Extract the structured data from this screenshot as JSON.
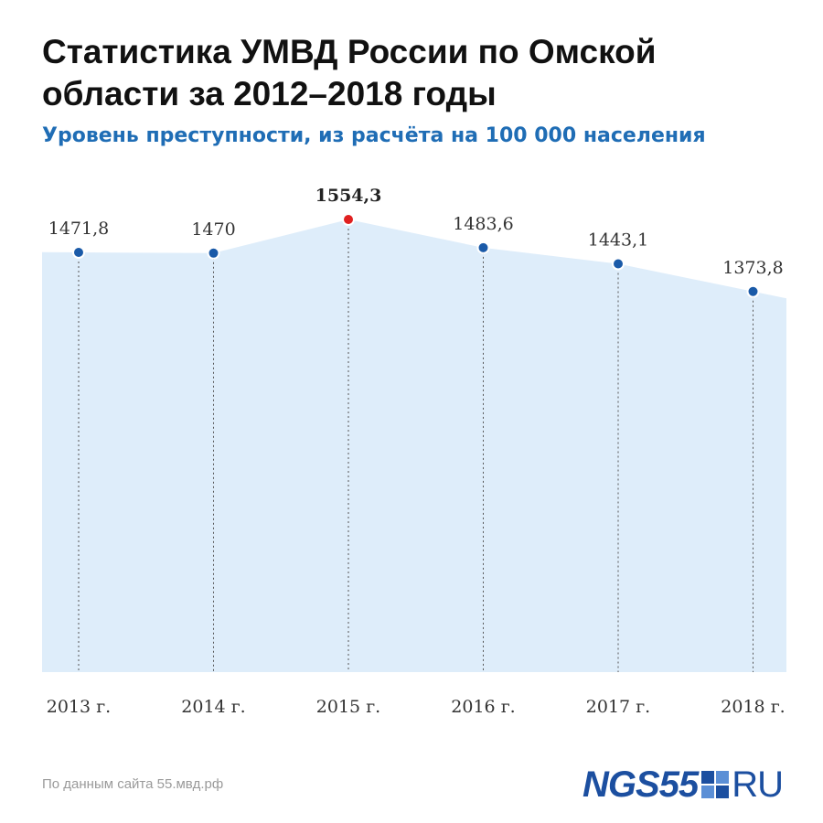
{
  "title": "Статистика УМВД России по Омской области за 2012–2018 годы",
  "subtitle": "Уровень преступности, из расчёта на 100 000 населения",
  "source": "По данным сайта 55.мвд.рф",
  "logo": {
    "main": "NGS55",
    "suffix": "RU"
  },
  "colors": {
    "area": "#deedfa",
    "point": "#1a5aa8",
    "highlight": "#e02020",
    "label": "#333333",
    "subtitle": "#1f6db5",
    "logo": "#1c4fa0"
  },
  "chart_data": {
    "type": "area",
    "title": "Статистика УМВД России по Омской области за 2012–2018 годы",
    "subtitle": "Уровень преступности, из расчёта на 100 000 населения",
    "categories": [
      "2013 г.",
      "2014 г.",
      "2015 г.",
      "2016 г.",
      "2017 г.",
      "2018 г."
    ],
    "values": [
      1471.8,
      1470,
      1554.3,
      1483.6,
      1443.1,
      1373.8
    ],
    "labels": [
      "1471,8",
      "1470",
      "1554,3",
      "1483,6",
      "1443,1",
      "1373,8"
    ],
    "highlight_index": 2,
    "grid": "vertical dotted lines at each point",
    "legend": "none"
  }
}
